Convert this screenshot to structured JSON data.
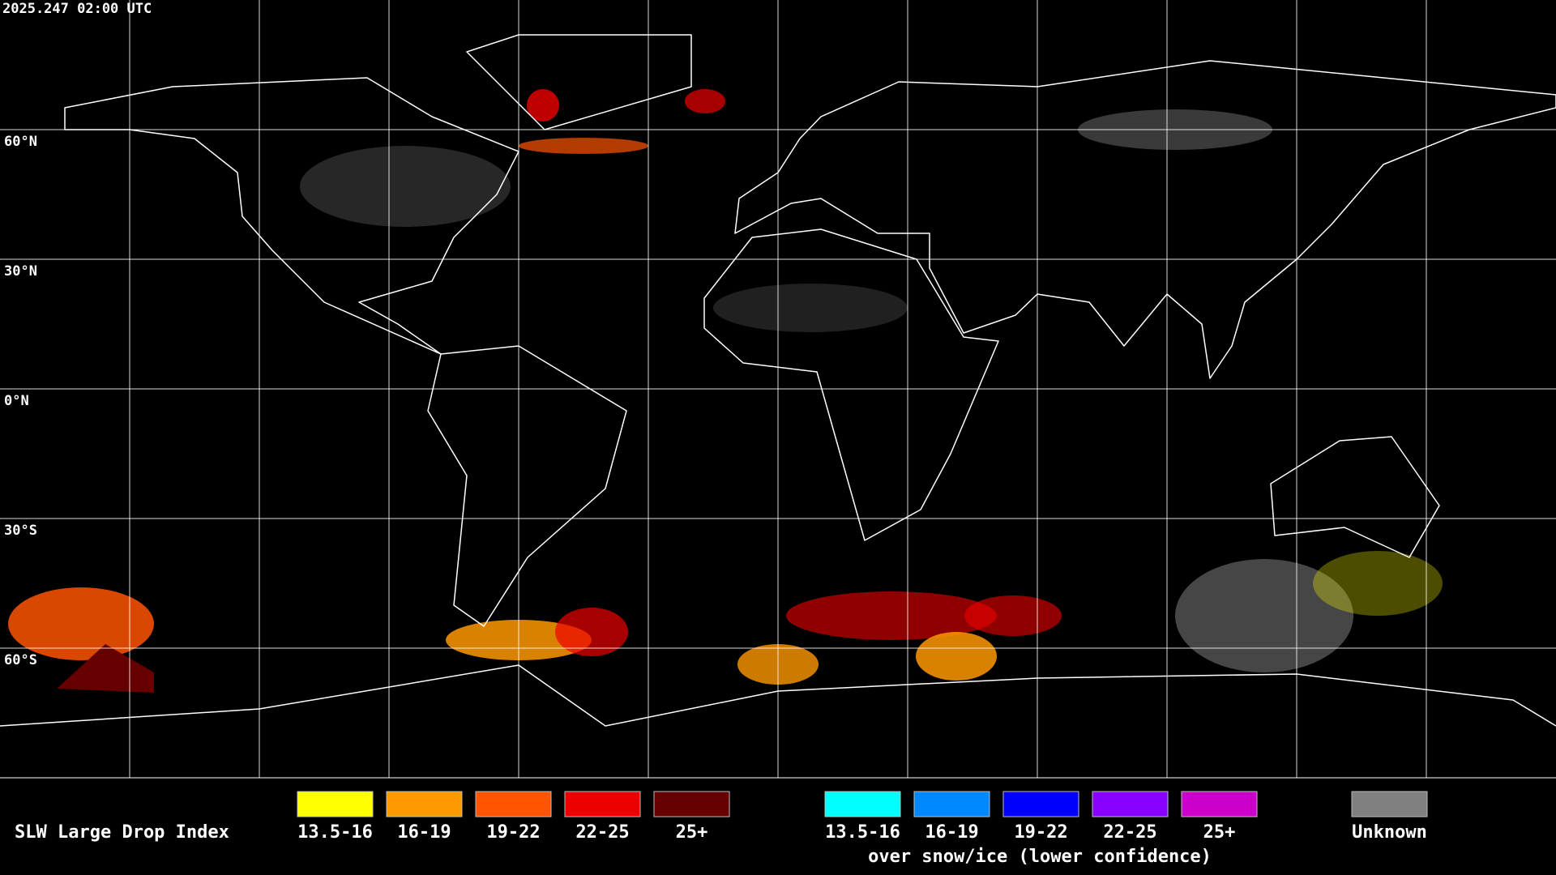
{
  "timestamp": "2025.247 02:00 UTC",
  "latitude_labels": [
    "60°N",
    "30°N",
    "0°N",
    "30°S",
    "60°S"
  ],
  "legend": {
    "title": "SLW Large Drop Index",
    "items": [
      {
        "label": "13.5-16",
        "color": "#ffff00"
      },
      {
        "label": "16-19",
        "color": "#ff9900"
      },
      {
        "label": "19-22",
        "color": "#ff5500"
      },
      {
        "label": "22-25",
        "color": "#ee0000"
      },
      {
        "label": "25+",
        "color": "#660000"
      }
    ],
    "snow_ice_items": [
      {
        "label": "13.5-16",
        "color": "#00ffff"
      },
      {
        "label": "16-19",
        "color": "#0088ff"
      },
      {
        "label": "19-22",
        "color": "#0000ff"
      },
      {
        "label": "22-25",
        "color": "#8800ff"
      },
      {
        "label": "25+",
        "color": "#cc00cc"
      }
    ],
    "snow_ice_caption": "over snow/ice (lower confidence)",
    "unknown": {
      "label": "Unknown",
      "color": "#808080"
    }
  }
}
